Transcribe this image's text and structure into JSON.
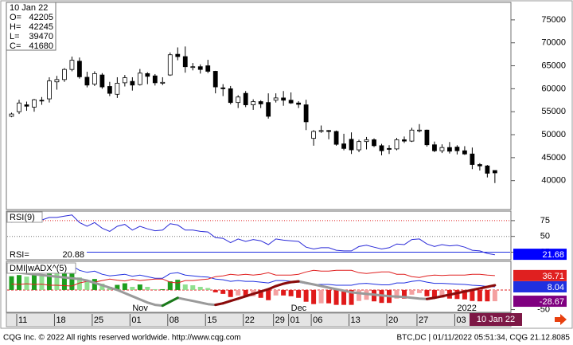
{
  "info": {
    "date": "10 Jan 22",
    "labels": [
      "O=",
      "H=",
      "L=",
      "C="
    ]
  },
  "cursor_date": "10 Jan 22",
  "x_axis": {
    "categories": [
      null,
      "11",
      null,
      null,
      null,
      null,
      "18",
      null,
      null,
      null,
      null,
      "25",
      null,
      null,
      null,
      null,
      "01",
      null,
      null,
      null,
      null,
      "08",
      null,
      null,
      null,
      null,
      "15",
      null,
      null,
      null,
      null,
      "22",
      null,
      null,
      null,
      "29",
      null,
      "01",
      null,
      null,
      "06",
      null,
      null,
      null,
      null,
      "13",
      null,
      null,
      null,
      null,
      "20",
      null,
      null,
      null,
      "27",
      null,
      null,
      null,
      null,
      "03",
      null,
      null,
      null,
      null,
      null
    ],
    "months": [
      null,
      null,
      null,
      null,
      null,
      null,
      null,
      null,
      null,
      null,
      null,
      null,
      null,
      null,
      null,
      null,
      "Nov",
      null,
      null,
      null,
      null,
      null,
      null,
      null,
      null,
      null,
      null,
      null,
      null,
      null,
      null,
      null,
      null,
      null,
      null,
      null,
      null,
      "Dec",
      null,
      null,
      null,
      null,
      null,
      null,
      null,
      null,
      null,
      null,
      null,
      null,
      null,
      null,
      null,
      null,
      null,
      null,
      null,
      null,
      null,
      "2022",
      null,
      null,
      null,
      null,
      null
    ]
  },
  "chart_data": [
    {
      "type": "candlestick",
      "open": [
        54000,
        55000,
        56500,
        56000,
        57500,
        57800,
        61500,
        62000,
        64200,
        66000,
        62500,
        61000,
        63000,
        60500,
        58800,
        61300,
        61600,
        60900,
        63300,
        62800,
        61200,
        63000,
        67500,
        67000,
        64700,
        64800,
        65000,
        63800,
        60200,
        60000,
        57000,
        59000,
        56500,
        57200,
        57000,
        57500,
        58000,
        57500,
        56900,
        56500,
        49200,
        50700,
        50900,
        50700,
        48000,
        49000,
        46700,
        48500,
        48900,
        47600,
        47000,
        46900,
        48900,
        48600,
        50900,
        51000,
        47800,
        46500,
        47200,
        47300,
        46500,
        45800,
        43500,
        43200,
        42205
      ],
      "high": [
        54800,
        57600,
        57200,
        57800,
        58200,
        62500,
        62800,
        64500,
        67000,
        66800,
        63700,
        63800,
        63400,
        61500,
        62500,
        63000,
        62500,
        64300,
        63600,
        63200,
        62500,
        67900,
        69000,
        69200,
        65600,
        65300,
        66300,
        63900,
        61000,
        60600,
        58600,
        59500,
        57700,
        57500,
        59000,
        59000,
        59500,
        59200,
        57300,
        57600,
        51000,
        52000,
        51000,
        50900,
        50200,
        50500,
        48900,
        49500,
        49200,
        48000,
        47700,
        49300,
        49600,
        51500,
        52300,
        51100,
        48500,
        47900,
        48400,
        47700,
        47500,
        47200,
        43800,
        43400,
        42245
      ],
      "low": [
        53800,
        54500,
        55200,
        55000,
        56500,
        57000,
        59800,
        61500,
        63800,
        62200,
        60300,
        60600,
        60000,
        58400,
        58000,
        60500,
        59600,
        60700,
        61000,
        60700,
        60800,
        62800,
        66200,
        63500,
        64000,
        63300,
        63400,
        59000,
        58400,
        56600,
        55800,
        56000,
        55400,
        55800,
        53500,
        57000,
        56300,
        56700,
        55800,
        51000,
        47600,
        50400,
        49000,
        47600,
        46600,
        45800,
        46200,
        46800,
        47300,
        45500,
        45800,
        46600,
        48200,
        48400,
        50500,
        47400,
        46200,
        46000,
        45900,
        45700,
        45600,
        42500,
        42200,
        40700,
        39470
      ],
      "close": [
        54500,
        56900,
        56200,
        57600,
        57400,
        61700,
        62000,
        64200,
        66200,
        62600,
        60800,
        63300,
        60400,
        59000,
        61200,
        62400,
        60800,
        63400,
        62700,
        61300,
        61400,
        67400,
        67000,
        64800,
        64800,
        64200,
        63800,
        60400,
        60000,
        57000,
        58200,
        56500,
        57200,
        56700,
        54000,
        58000,
        57500,
        56900,
        56600,
        52800,
        50700,
        50900,
        50700,
        47900,
        47000,
        46700,
        48500,
        48900,
        47600,
        46500,
        46800,
        48900,
        48600,
        51000,
        51000,
        47800,
        46500,
        47200,
        46400,
        46500,
        45800,
        43500,
        43200,
        41600,
        41680
      ],
      "up_color": "#ffffff",
      "down_color": "#000000",
      "ylim": [
        33700,
        78800
      ],
      "yticks": [
        40000,
        45000,
        50000,
        55000,
        60000,
        65000,
        70000,
        75000
      ]
    },
    {
      "type": "line",
      "title": "RSI(9)",
      "value_label": "RSI=",
      "values": [
        72,
        76,
        73,
        77,
        76,
        80,
        80,
        82,
        84,
        72,
        66,
        72,
        63,
        58,
        66,
        69,
        60,
        66,
        62,
        59,
        60,
        70,
        68,
        60,
        60,
        58,
        57,
        48,
        47,
        40,
        46,
        42,
        45,
        43,
        37,
        46,
        44,
        43,
        42,
        33,
        30,
        32,
        32,
        28,
        27,
        27,
        34,
        36,
        33,
        30,
        32,
        38,
        37,
        45,
        46,
        38,
        34,
        37,
        35,
        36,
        33,
        28,
        27,
        23,
        20.88
      ],
      "color": "#2a2ad8",
      "ylim": [
        13,
        90
      ],
      "yticks": [
        25,
        50,
        75
      ],
      "grid": true,
      "grid_colors": [
        "#2030e0",
        "#777777",
        "#e02020"
      ],
      "marker": 21.68,
      "marker_color": "#0000ff"
    },
    {
      "type": "dmi",
      "title": "DMI|wADX^(5)",
      "series": [
        {
          "color": "#2030e0",
          "values": [
            50,
            52,
            50,
            55,
            52,
            60,
            58,
            60,
            62,
            50,
            45,
            48,
            40,
            36,
            38,
            40,
            35,
            38,
            34,
            30,
            30,
            42,
            44,
            38,
            36,
            34,
            33,
            28,
            26,
            22,
            24,
            22,
            22,
            20,
            18,
            24,
            24,
            22,
            20,
            16,
            14,
            14,
            14,
            12,
            12,
            12,
            16,
            17,
            15,
            13,
            13,
            18,
            18,
            22,
            24,
            20,
            17,
            17,
            16,
            15,
            14,
            12,
            11,
            9,
            8.04
          ]
        },
        {
          "color": "#e02020",
          "values": [
            15,
            14,
            16,
            14,
            15,
            12,
            12,
            11,
            10,
            18,
            22,
            20,
            24,
            28,
            25,
            23,
            27,
            24,
            26,
            28,
            28,
            20,
            18,
            24,
            24,
            26,
            28,
            34,
            36,
            40,
            38,
            40,
            38,
            40,
            44,
            38,
            38,
            38,
            40,
            46,
            50,
            48,
            48,
            50,
            50,
            50,
            44,
            42,
            44,
            46,
            46,
            40,
            40,
            34,
            32,
            36,
            38,
            37,
            38,
            38,
            38,
            40,
            40,
            38,
            36.71
          ]
        }
      ],
      "histogram": {
        "values": [
          35,
          38,
          34,
          41,
          37,
          48,
          46,
          49,
          52,
          32,
          23,
          28,
          16,
          8,
          13,
          17,
          8,
          14,
          8,
          2,
          2,
          22,
          26,
          14,
          12,
          8,
          5,
          -6,
          -10,
          -18,
          -14,
          -18,
          -16,
          -20,
          -26,
          -14,
          -14,
          -16,
          -20,
          -30,
          -36,
          -34,
          -34,
          -38,
          -38,
          -38,
          -28,
          -25,
          -29,
          -33,
          -33,
          -22,
          -22,
          -12,
          -8,
          -16,
          -21,
          -20,
          -22,
          -23,
          -24,
          -28,
          -29,
          -29,
          -28.67
        ],
        "colors": {
          "up_strong": "#1e9e1e",
          "up_weak": "#8fe08f",
          "down_strong": "#e01a1a",
          "down_weak": "#f4a0a0"
        },
        "box_color": "#800080"
      },
      "adx": {
        "values": [
          45,
          44,
          42,
          40,
          38,
          36,
          34,
          32,
          30,
          28,
          24,
          18,
          12,
          6,
          0,
          -8,
          -16,
          -24,
          -32,
          -38,
          -40,
          -30,
          -20,
          -24,
          -28,
          -32,
          -36,
          -38,
          -34,
          -28,
          -22,
          -16,
          -10,
          -4,
          2,
          10,
          16,
          20,
          22,
          18,
          14,
          10,
          6,
          2,
          -2,
          -6,
          -8,
          -10,
          -12,
          -14,
          -16,
          -17,
          -18,
          -20,
          -22,
          -23,
          -20,
          -16,
          -12,
          -8,
          -4,
          0,
          4,
          8,
          12
        ],
        "colors": {
          "falling": "#9a9a9a",
          "rising_bull": "#1a7a1a",
          "rising_bear": "#8b0a0a"
        }
      },
      "zero_color": "#e02020",
      "ylim": [
        -57,
        73
      ],
      "yticks": [
        -50
      ]
    }
  ],
  "footer": {
    "left": "CQG Inc. © 2022 All rights reserved worldwide. http://www.cqg.com",
    "right": "BTC,DC | 01/11/2022 05:51:34, CQG 21.12.8085"
  }
}
